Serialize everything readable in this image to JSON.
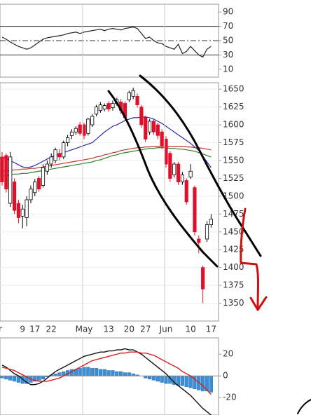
{
  "chart_data": [
    {
      "type": "line",
      "ylim": [
        0,
        100
      ],
      "yticks": [
        90,
        70,
        50,
        30,
        10
      ],
      "levels": [
        70,
        50,
        30
      ],
      "series": [
        {
          "color": "#222222",
          "values": [
            55,
            52,
            48,
            45,
            42,
            40,
            38,
            40,
            44,
            48,
            52,
            54,
            55,
            56,
            57,
            58,
            60,
            61,
            62,
            60,
            62,
            63,
            64,
            65,
            66,
            64,
            66,
            67,
            66,
            65,
            67,
            68,
            69,
            67,
            60,
            53,
            55,
            50,
            47,
            46,
            42,
            40,
            38,
            45,
            32,
            35,
            42,
            36,
            30,
            27,
            38,
            42
          ]
        }
      ]
    },
    {
      "type": "candlestick",
      "ylim": [
        1325,
        1660
      ],
      "yticks": [
        1650,
        1625,
        1600,
        1575,
        1550,
        1525,
        1500,
        1475,
        1450,
        1425,
        1400,
        1375,
        1350
      ],
      "categories": [
        "pr",
        null,
        null,
        null,
        null,
        "9",
        null,
        null,
        "17",
        null,
        null,
        null,
        "22",
        null,
        null,
        null,
        null,
        null,
        null,
        null,
        "May",
        null,
        null,
        null,
        null,
        null,
        "13",
        null,
        null,
        null,
        null,
        "20",
        null,
        null,
        null,
        "27",
        null,
        null,
        null,
        null,
        "Jun",
        null,
        null,
        null,
        null,
        null,
        "10",
        null,
        null,
        null,
        null,
        "17"
      ],
      "up_color": "#ffffff",
      "down_color": "#e0102a",
      "open": [
        1555,
        1557,
        1490,
        1520,
        1490,
        1472,
        1470,
        1495,
        1505,
        1525,
        1515,
        1535,
        1545,
        1550,
        1560,
        1555,
        1575,
        1585,
        1590,
        1600,
        1600,
        1588,
        1600,
        1615,
        1620,
        1622,
        1630,
        1624,
        1630,
        1632,
        1630,
        1635,
        1640,
        1640,
        1625,
        1610,
        1590,
        1605,
        1600,
        1590,
        1580,
        1560,
        1530,
        1545,
        1520,
        1522,
        1527,
        1512,
        1440,
        1400,
        1440,
        1460
      ],
      "high": [
        1562,
        1560,
        1562,
        1525,
        1495,
        1488,
        1500,
        1515,
        1524,
        1528,
        1545,
        1550,
        1560,
        1568,
        1566,
        1578,
        1586,
        1594,
        1598,
        1604,
        1603,
        1610,
        1615,
        1628,
        1632,
        1630,
        1633,
        1634,
        1638,
        1636,
        1633,
        1648,
        1652,
        1644,
        1628,
        1613,
        1608,
        1608,
        1603,
        1594,
        1584,
        1563,
        1548,
        1548,
        1534,
        1525,
        1545,
        1515,
        1445,
        1403,
        1465,
        1475
      ],
      "low": [
        1515,
        1505,
        1485,
        1475,
        1462,
        1455,
        1458,
        1490,
        1500,
        1506,
        1512,
        1530,
        1540,
        1546,
        1550,
        1552,
        1570,
        1580,
        1586,
        1585,
        1580,
        1585,
        1597,
        1612,
        1617,
        1619,
        1618,
        1620,
        1627,
        1615,
        1606,
        1632,
        1636,
        1624,
        1596,
        1576,
        1586,
        1586,
        1580,
        1566,
        1540,
        1520,
        1526,
        1516,
        1516,
        1488,
        1524,
        1445,
        1420,
        1350,
        1436,
        1456
      ],
      "close": [
        1520,
        1510,
        1555,
        1480,
        1470,
        1482,
        1495,
        1510,
        1520,
        1510,
        1540,
        1545,
        1555,
        1565,
        1555,
        1575,
        1582,
        1590,
        1595,
        1588,
        1585,
        1608,
        1612,
        1625,
        1628,
        1627,
        1622,
        1630,
        1635,
        1620,
        1610,
        1645,
        1648,
        1628,
        1600,
        1580,
        1605,
        1590,
        1585,
        1570,
        1545,
        1525,
        1545,
        1520,
        1530,
        1492,
        1535,
        1450,
        1435,
        1370,
        1460,
        1468
      ],
      "series": [
        {
          "color": "#2a2aa8",
          "values": [
            1555,
            1553,
            1550,
            1547,
            1544,
            1541,
            1540,
            1541,
            1543,
            1546,
            1549,
            1552,
            1555,
            1557,
            1559,
            1561,
            1563,
            1565,
            1567,
            1569,
            1571,
            1573,
            1575,
            1580,
            1585,
            1590,
            1594,
            1598,
            1600,
            1603,
            1606,
            1608,
            1610,
            1610,
            1611,
            1611,
            1610,
            1608,
            1605,
            1602,
            1598,
            1594,
            1590,
            1586,
            1582,
            1578,
            1574,
            1569,
            1564,
            1556,
            1548,
            1540
          ]
        },
        {
          "color": "#c0392b",
          "values": [
            1535,
            1536,
            1536,
            1537,
            1537,
            1538,
            1538,
            1539,
            1539,
            1540,
            1541,
            1542,
            1543,
            1544,
            1545,
            1546,
            1547,
            1548,
            1549,
            1550,
            1551,
            1552,
            1553,
            1555,
            1556,
            1558,
            1559,
            1561,
            1562,
            1564,
            1565,
            1566,
            1567,
            1568,
            1568,
            1569,
            1569,
            1570,
            1570,
            1570,
            1570,
            1570,
            1570,
            1570,
            1570,
            1569,
            1569,
            1568,
            1568,
            1567,
            1566,
            1565
          ]
        },
        {
          "color": "#2e7d32",
          "values": [
            1528,
            1529,
            1530,
            1531,
            1531,
            1532,
            1532,
            1533,
            1534,
            1535,
            1536,
            1537,
            1538,
            1539,
            1540,
            1541,
            1542,
            1543,
            1544,
            1545,
            1546,
            1547,
            1548,
            1550,
            1551,
            1553,
            1555,
            1557,
            1558,
            1560,
            1561,
            1562,
            1563,
            1564,
            1565,
            1566,
            1567,
            1567,
            1568,
            1568,
            1568,
            1567,
            1567,
            1566,
            1566,
            1565,
            1564,
            1563,
            1561,
            1559,
            1557,
            1555
          ]
        }
      ]
    },
    {
      "type": "macd",
      "ylim": [
        -36,
        35
      ],
      "yticks": [
        20,
        0,
        -20
      ],
      "bar_color": "#3a8fd6",
      "histogram": [
        -2,
        -3,
        -4,
        -5,
        -6,
        -7,
        -7,
        -6,
        -5,
        -4,
        -3,
        -1,
        1,
        2,
        3,
        4,
        5,
        6,
        6,
        7,
        8,
        8,
        7,
        7,
        6,
        6,
        5,
        5,
        4,
        4,
        3,
        3,
        2,
        1,
        0,
        -2,
        -3,
        -4,
        -5,
        -6,
        -7,
        -7,
        -8,
        -9,
        -9,
        -10,
        -11,
        -12,
        -13,
        -14,
        -14,
        -15
      ],
      "series": [
        {
          "color": "#111111",
          "values": [
            10,
            8,
            5,
            2,
            0,
            -3,
            -6,
            -8,
            -8,
            -7,
            -5,
            -2,
            1,
            4,
            6,
            8,
            10,
            12,
            14,
            16,
            18,
            19,
            20,
            21,
            22,
            22,
            23,
            23,
            24,
            24,
            25,
            24,
            24,
            22,
            20,
            17,
            14,
            11,
            8,
            5,
            2,
            -2,
            -6,
            -9,
            -12,
            -15,
            -18,
            -22,
            -26,
            -30,
            -33,
            -36
          ]
        },
        {
          "color": "#d62020",
          "values": [
            8,
            7,
            6,
            5,
            3,
            1,
            -1,
            -3,
            -4,
            -5,
            -5,
            -5,
            -4,
            -3,
            -2,
            0,
            2,
            4,
            6,
            8,
            10,
            12,
            14,
            15,
            16,
            17,
            18,
            19,
            20,
            21,
            21,
            22,
            22,
            22,
            21,
            21,
            20,
            19,
            17,
            15,
            13,
            11,
            9,
            7,
            4,
            2,
            0,
            -3,
            -6,
            -9,
            -13,
            -17
          ]
        }
      ]
    }
  ]
}
